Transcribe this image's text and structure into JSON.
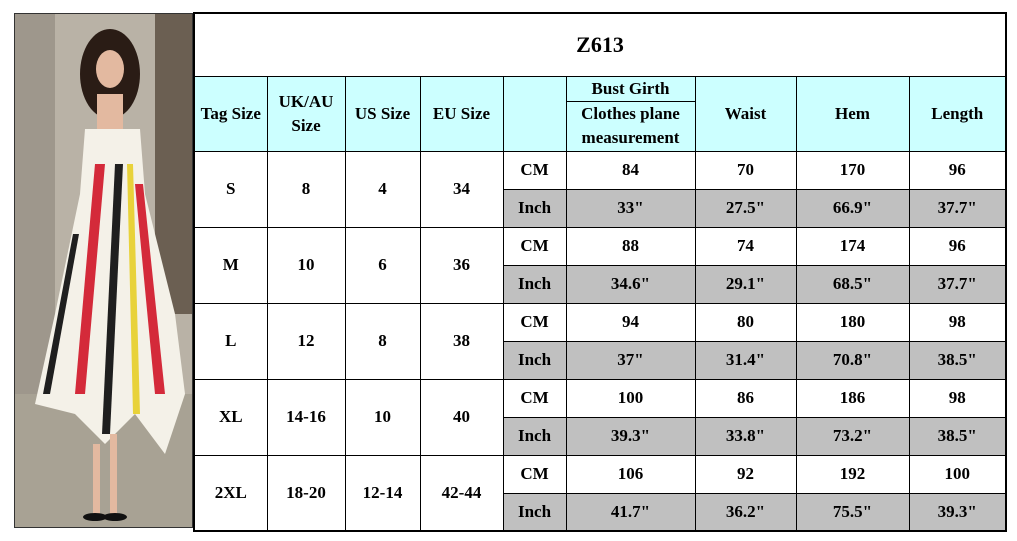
{
  "title": "Z613",
  "header": {
    "tag_size": "Tag Size",
    "uk_au_size": "UK/AU Size",
    "us_size": "US Size",
    "eu_size": "EU Size",
    "bust_girth": "Bust Girth",
    "bust_note": "Clothes plane measurement",
    "waist": "Waist",
    "hem": "Hem",
    "length": "Length"
  },
  "rows": [
    {
      "tag": "S",
      "uk_au": "8",
      "us": "4",
      "eu": "34",
      "cm": {
        "unit": "CM",
        "values": [
          "84",
          "70",
          "170",
          "96"
        ]
      },
      "inch": {
        "unit": "Inch",
        "values": [
          "33\"",
          "27.5\"",
          "66.9\"",
          "37.7\""
        ]
      }
    },
    {
      "tag": "M",
      "uk_au": "10",
      "us": "6",
      "eu": "36",
      "cm": {
        "unit": "CM",
        "values": [
          "88",
          "74",
          "174",
          "96"
        ]
      },
      "inch": {
        "unit": "Inch",
        "values": [
          "34.6\"",
          "29.1\"",
          "68.5\"",
          "37.7\""
        ]
      }
    },
    {
      "tag": "L",
      "uk_au": "12",
      "us": "8",
      "eu": "38",
      "cm": {
        "unit": "CM",
        "values": [
          "94",
          "80",
          "180",
          "98"
        ]
      },
      "inch": {
        "unit": "Inch",
        "values": [
          "37\"",
          "31.4\"",
          "70.8\"",
          "38.5\""
        ]
      }
    },
    {
      "tag": "XL",
      "uk_au": "14-16",
      "us": "10",
      "eu": "40",
      "cm": {
        "unit": "CM",
        "values": [
          "100",
          "86",
          "186",
          "98"
        ]
      },
      "inch": {
        "unit": "Inch",
        "values": [
          "39.3\"",
          "33.8\"",
          "73.2\"",
          "38.5\""
        ]
      }
    },
    {
      "tag": "2XL",
      "uk_au": "18-20",
      "us": "12-14",
      "eu": "42-44",
      "cm": {
        "unit": "CM",
        "values": [
          "106",
          "92",
          "192",
          "100"
        ]
      },
      "inch": {
        "unit": "Inch",
        "values": [
          "41.7\"",
          "36.2\"",
          "75.5\"",
          "39.3\""
        ]
      }
    }
  ]
}
